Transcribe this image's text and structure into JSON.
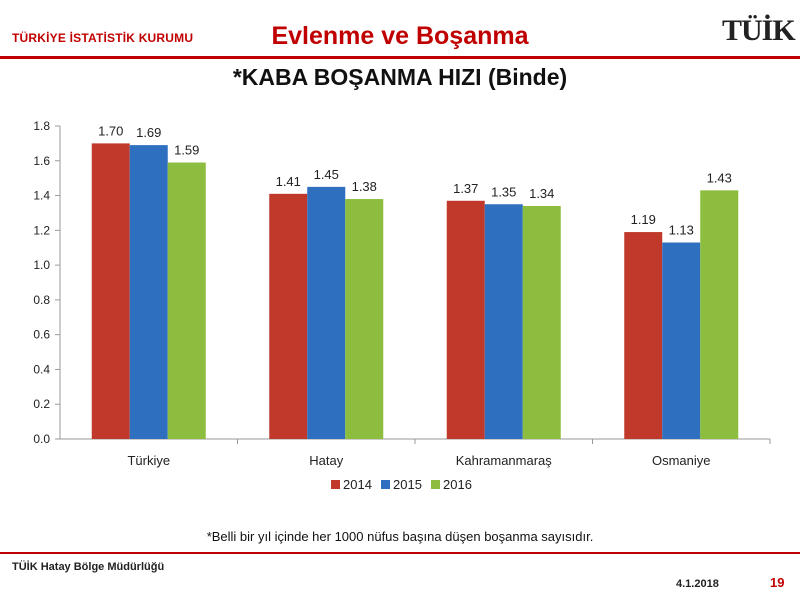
{
  "header": {
    "org": "TÜRKİYE İSTATİSTİK KURUMU",
    "title": "Evlenme ve Boşanma",
    "logo": "TÜİK"
  },
  "footnote": "*Belli bir yıl içinde her 1000 nüfus başına düşen boşanma sayısıdır.",
  "footer": {
    "left": "TÜİK Hatay Bölge Müdürlüğü",
    "date": "4.1.2018",
    "page": "19"
  },
  "chart_data": {
    "type": "bar",
    "title": "*KABA BOŞANMA HIZI (Binde)",
    "categories": [
      "Türkiye",
      "Hatay",
      "Kahramanmaraş",
      "Osmaniye"
    ],
    "series": [
      {
        "name": "2014",
        "color": "#c0392b",
        "values": [
          1.7,
          1.41,
          1.37,
          1.19
        ]
      },
      {
        "name": "2015",
        "color": "#2e6fc0",
        "values": [
          1.69,
          1.45,
          1.35,
          1.13
        ]
      },
      {
        "name": "2016",
        "color": "#8cbd3f",
        "values": [
          1.59,
          1.38,
          1.34,
          1.43
        ]
      }
    ],
    "ylim": [
      0,
      1.8
    ],
    "yticks": [
      "0.0",
      "0.2",
      "0.4",
      "0.6",
      "0.8",
      "1.0",
      "1.2",
      "1.4",
      "1.6",
      "1.8"
    ],
    "legend_position": "bottom",
    "grid": false
  }
}
